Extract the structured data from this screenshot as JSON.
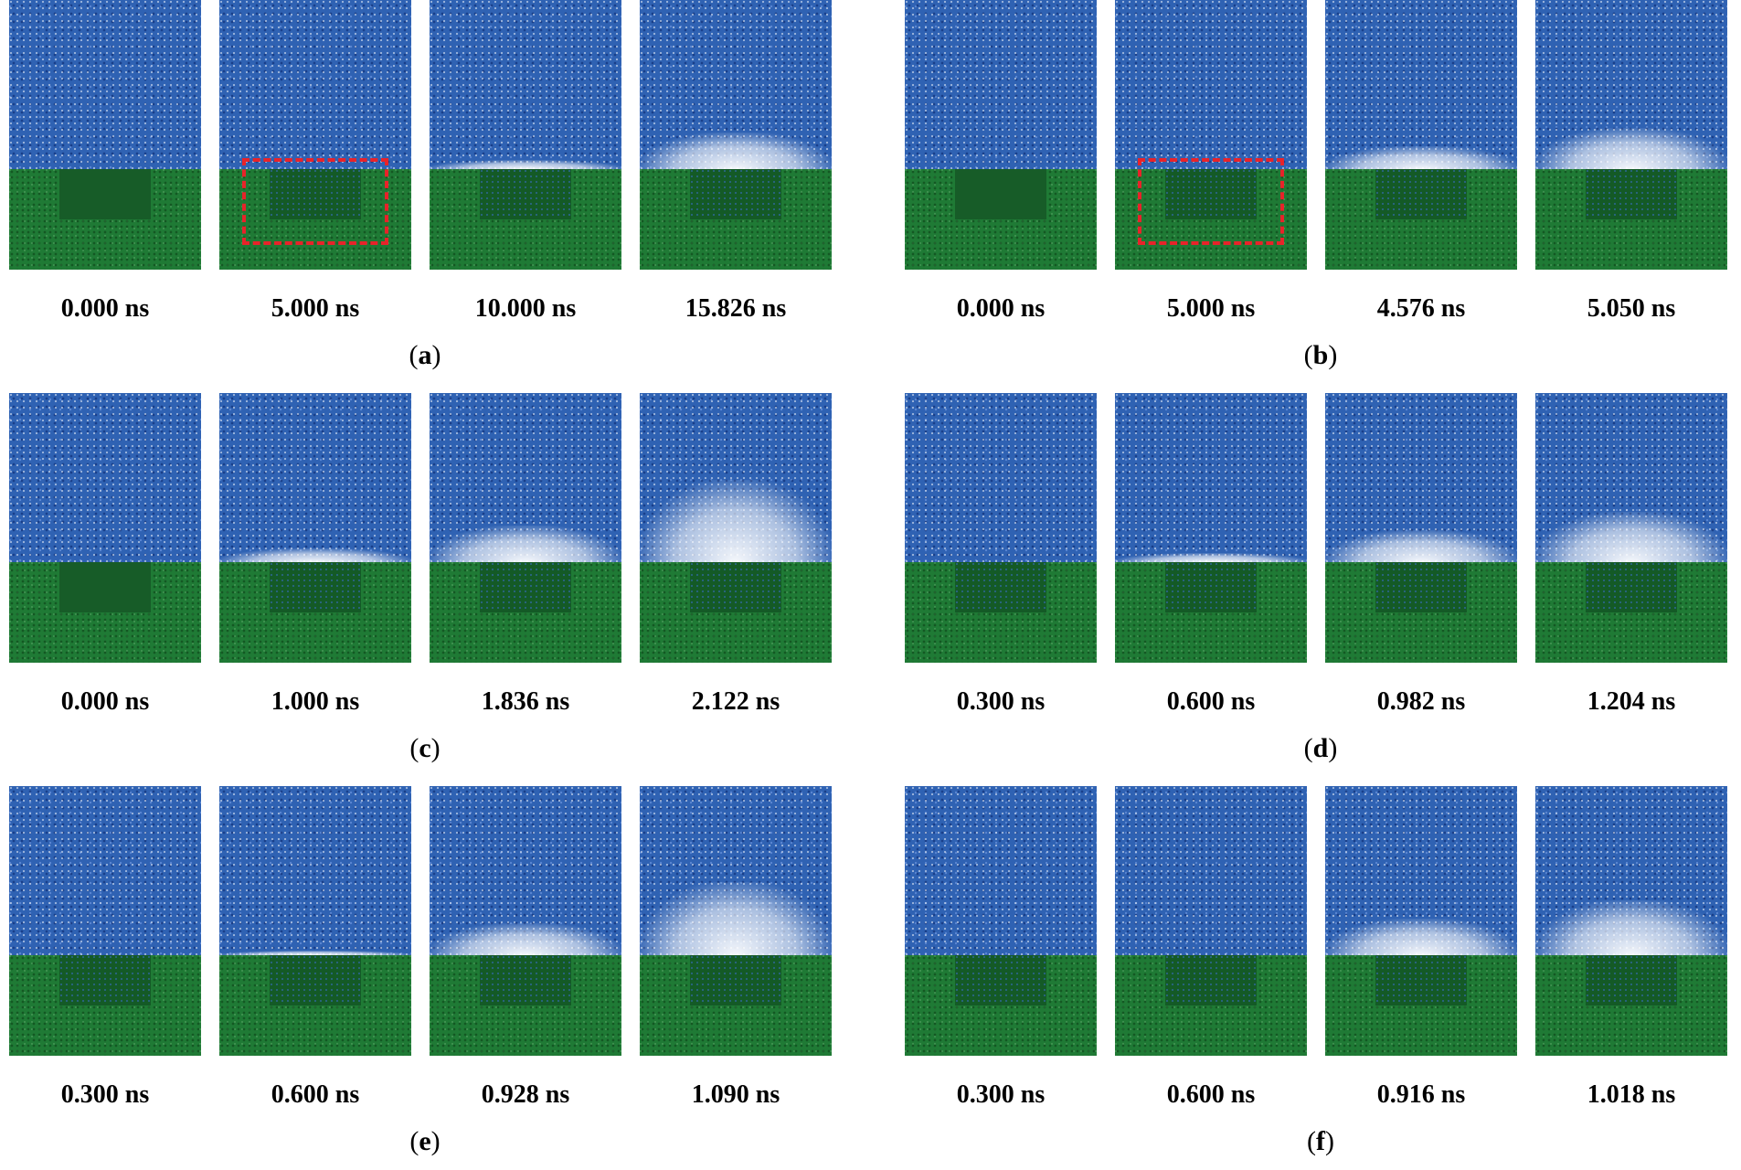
{
  "panels": [
    {
      "id": "a",
      "times": [
        "0.000 ns",
        "5.000 ns",
        "10.000 ns",
        "15.826 ns"
      ]
    },
    {
      "id": "b",
      "times": [
        "0.000 ns",
        "5.000 ns",
        "4.576 ns",
        "5.050 ns"
      ]
    },
    {
      "id": "c",
      "times": [
        "0.000 ns",
        "1.000 ns",
        "1.836 ns",
        "2.122 ns"
      ]
    },
    {
      "id": "d",
      "times": [
        "0.300 ns",
        "0.600 ns",
        "0.982 ns",
        "1.204 ns"
      ]
    },
    {
      "id": "e",
      "times": [
        "0.300 ns",
        "0.600 ns",
        "0.928 ns",
        "1.090 ns"
      ]
    },
    {
      "id": "f",
      "times": [
        "0.300 ns",
        "0.600 ns",
        "0.916 ns",
        "1.018 ns"
      ]
    }
  ],
  "colors": {
    "liquid": "#2f62b3",
    "substrate": "#1f7a35",
    "highlight": "#e8232a"
  }
}
